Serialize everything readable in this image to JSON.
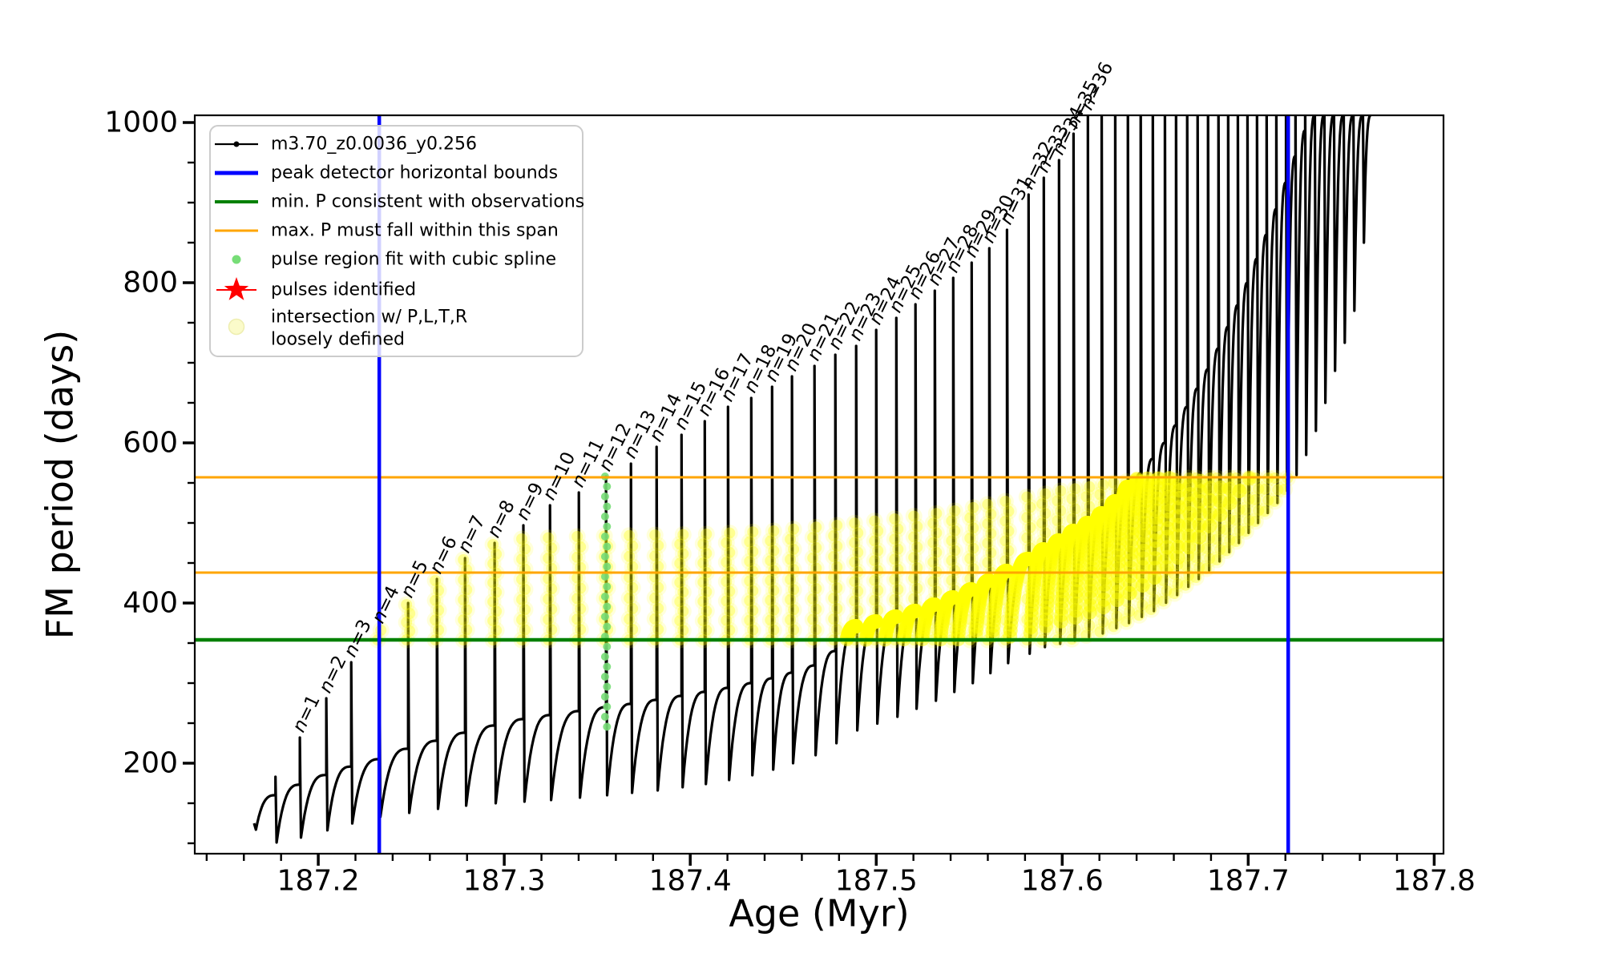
{
  "chart_data": {
    "type": "line",
    "title": "",
    "xlabel": "Age (Myr)",
    "ylabel": "FM period (days)",
    "xlim": [
      187.1336,
      187.805
    ],
    "ylim": [
      87,
      1009
    ],
    "x_major_ticks": [
      187.2,
      187.3,
      187.4,
      187.5,
      187.6,
      187.7,
      187.8
    ],
    "x_major_labels": [
      "187.2",
      "187.3",
      "187.4",
      "187.5",
      "187.6",
      "187.7",
      "187.8"
    ],
    "x_minor": {
      "start": 187.14,
      "step": 0.02,
      "end": 187.8
    },
    "y_major_ticks": [
      200,
      400,
      600,
      800,
      1000
    ],
    "y_major_labels": [
      "200",
      "400",
      "600",
      "800",
      "1000"
    ],
    "y_minor": {
      "start": 100,
      "step": 50,
      "end": 1000
    },
    "grid": false,
    "legend_position": "upper left",
    "series_label": "m3.70_z0.0036_y0.256",
    "colors": {
      "series": "#000000",
      "peak_bounds": "#0000ff",
      "min_p": "#008000",
      "max_p_span": "#ffa500",
      "spline_dots": "#77dd77",
      "pulses_star": "#ff0000",
      "intersection": "#ffff00"
    },
    "hlines": [
      {
        "name": "max. P span upper",
        "y": 557,
        "color": "#ffa500",
        "width": 3
      },
      {
        "name": "max. P span lower",
        "y": 438,
        "color": "#ffa500",
        "width": 3
      },
      {
        "name": "min. P consistent with observations",
        "y": 354,
        "color": "#008000",
        "width": 4.5
      }
    ],
    "vlines": [
      {
        "name": "peak detector left bound",
        "x": 187.2328,
        "color": "#0000ff",
        "width": 4.5
      },
      {
        "name": "peak detector right bound",
        "x": 187.7215,
        "color": "#0000ff",
        "width": 4.5
      }
    ],
    "curve_start": {
      "x": 187.1655,
      "y": 125,
      "hook_y": 117
    },
    "pre_pulse": {
      "x": 187.177,
      "peak": 183
    },
    "pulses": [
      {
        "n": 1,
        "x": 187.1901,
        "peak": 232
      },
      {
        "n": 2,
        "x": 187.2043,
        "peak": 281
      },
      {
        "n": 3,
        "x": 187.2177,
        "peak": 326
      },
      {
        "n": 4,
        "x": 187.2328,
        "peak": 368
      },
      {
        "n": 5,
        "x": 187.2483,
        "peak": 400
      },
      {
        "n": 6,
        "x": 187.2638,
        "peak": 430
      },
      {
        "n": 7,
        "x": 187.2789,
        "peak": 456
      },
      {
        "n": 8,
        "x": 187.2948,
        "peak": 475
      },
      {
        "n": 9,
        "x": 187.3103,
        "peak": 497
      },
      {
        "n": 10,
        "x": 187.3246,
        "peak": 522
      },
      {
        "n": 11,
        "x": 187.3401,
        "peak": 538
      },
      {
        "n": 12,
        "x": 187.3547,
        "peak": 558
      },
      {
        "n": 13,
        "x": 187.3681,
        "peak": 574
      },
      {
        "n": 14,
        "x": 187.3819,
        "peak": 595
      },
      {
        "n": 15,
        "x": 187.3953,
        "peak": 610
      },
      {
        "n": 16,
        "x": 187.4078,
        "peak": 627
      },
      {
        "n": 17,
        "x": 187.4203,
        "peak": 645
      },
      {
        "n": 18,
        "x": 187.4328,
        "peak": 656
      },
      {
        "n": 19,
        "x": 187.444,
        "peak": 670
      },
      {
        "n": 20,
        "x": 187.4547,
        "peak": 683
      },
      {
        "n": 21,
        "x": 187.4668,
        "peak": 696
      },
      {
        "n": 22,
        "x": 187.478,
        "peak": 710
      },
      {
        "n": 23,
        "x": 187.4892,
        "peak": 721
      },
      {
        "n": 24,
        "x": 187.5,
        "peak": 741
      },
      {
        "n": 25,
        "x": 187.5108,
        "peak": 756
      },
      {
        "n": 26,
        "x": 187.5211,
        "peak": 773
      },
      {
        "n": 27,
        "x": 187.5315,
        "peak": 790
      },
      {
        "n": 28,
        "x": 187.5414,
        "peak": 806
      },
      {
        "n": 29,
        "x": 187.5513,
        "peak": 825
      },
      {
        "n": 30,
        "x": 187.5608,
        "peak": 843
      },
      {
        "n": 31,
        "x": 187.5703,
        "peak": 866
      },
      {
        "n": 32,
        "x": 187.5819,
        "peak": 910
      },
      {
        "n": 33,
        "x": 187.5901,
        "peak": 931
      },
      {
        "n": 34,
        "x": 187.5983,
        "peak": 953
      },
      {
        "n": 35,
        "x": 187.6061,
        "peak": 986
      },
      {
        "n": 36,
        "x": 187.6138,
        "peak": 1009
      }
    ],
    "unlabeled_pulse_x": [
      187.6212,
      187.6285,
      187.6353,
      187.6422,
      187.6487,
      187.6552,
      187.6612,
      187.6672,
      187.6728,
      187.6784,
      187.684,
      187.6892,
      187.6944,
      187.6996,
      187.7047,
      187.7099,
      187.7151,
      187.7203,
      187.7254,
      187.7306,
      187.7358,
      187.7409,
      187.7461,
      187.7513,
      187.7565,
      187.7616
    ],
    "unlabeled_peak": 1040,
    "plateau_anchors": [
      [
        187.1655,
        125
      ],
      [
        187.177,
        160
      ],
      [
        187.19,
        173
      ],
      [
        187.204,
        185
      ],
      [
        187.218,
        196
      ],
      [
        187.2328,
        205
      ],
      [
        187.2483,
        218
      ],
      [
        187.2638,
        228
      ],
      [
        187.2789,
        238
      ],
      [
        187.2948,
        247
      ],
      [
        187.3103,
        255
      ],
      [
        187.3246,
        260
      ],
      [
        187.3401,
        265
      ],
      [
        187.3547,
        270
      ],
      [
        187.3681,
        274
      ],
      [
        187.3819,
        279
      ],
      [
        187.3953,
        284
      ],
      [
        187.4078,
        289
      ],
      [
        187.4203,
        294
      ],
      [
        187.4328,
        300
      ],
      [
        187.444,
        306
      ],
      [
        187.4547,
        313
      ],
      [
        187.4668,
        322
      ],
      [
        187.478,
        340
      ],
      [
        187.4892,
        371
      ],
      [
        187.5,
        377
      ],
      [
        187.5108,
        383
      ],
      [
        187.5211,
        390
      ],
      [
        187.5315,
        398
      ],
      [
        187.5414,
        407
      ],
      [
        187.5513,
        417
      ],
      [
        187.5608,
        428
      ],
      [
        187.5703,
        440
      ],
      [
        187.5819,
        455
      ],
      [
        187.5901,
        467
      ],
      [
        187.5983,
        478
      ],
      [
        187.6061,
        490
      ],
      [
        187.6138,
        500
      ],
      [
        187.6212,
        512
      ],
      [
        187.6285,
        527
      ],
      [
        187.6353,
        545
      ],
      [
        187.6422,
        562
      ],
      [
        187.6487,
        580
      ],
      [
        187.6552,
        600
      ],
      [
        187.6612,
        622
      ],
      [
        187.6672,
        645
      ],
      [
        187.6728,
        668
      ],
      [
        187.6784,
        692
      ],
      [
        187.684,
        718
      ],
      [
        187.6892,
        745
      ],
      [
        187.6944,
        772
      ],
      [
        187.6996,
        800
      ],
      [
        187.7047,
        830
      ],
      [
        187.7099,
        860
      ],
      [
        187.7151,
        892
      ],
      [
        187.7203,
        925
      ],
      [
        187.7254,
        958
      ],
      [
        187.7306,
        990
      ],
      [
        187.7358,
        1009
      ],
      [
        187.805,
        1009
      ]
    ],
    "dip_anchors": [
      [
        187.1655,
        117
      ],
      [
        187.177,
        101
      ],
      [
        187.19,
        107
      ],
      [
        187.204,
        116
      ],
      [
        187.218,
        125
      ],
      [
        187.2328,
        133
      ],
      [
        187.2483,
        138
      ],
      [
        187.2638,
        143
      ],
      [
        187.2789,
        147
      ],
      [
        187.2948,
        150
      ],
      [
        187.3103,
        152
      ],
      [
        187.3246,
        154
      ],
      [
        187.3401,
        157
      ],
      [
        187.3547,
        160
      ],
      [
        187.3681,
        163
      ],
      [
        187.3819,
        166
      ],
      [
        187.3953,
        170
      ],
      [
        187.4078,
        174
      ],
      [
        187.4203,
        179
      ],
      [
        187.4328,
        185
      ],
      [
        187.444,
        192
      ],
      [
        187.4547,
        200
      ],
      [
        187.4668,
        210
      ],
      [
        187.478,
        225
      ],
      [
        187.4892,
        241
      ],
      [
        187.5108,
        258
      ],
      [
        187.5315,
        278
      ],
      [
        187.5513,
        300
      ],
      [
        187.5703,
        325
      ],
      [
        187.5901,
        345
      ],
      [
        187.6061,
        353
      ],
      [
        187.6212,
        362
      ],
      [
        187.6353,
        375
      ],
      [
        187.6487,
        390
      ],
      [
        187.6612,
        410
      ],
      [
        187.6728,
        430
      ],
      [
        187.684,
        452
      ],
      [
        187.6944,
        475
      ],
      [
        187.7047,
        500
      ],
      [
        187.7151,
        525
      ],
      [
        187.7203,
        540
      ],
      [
        187.7254,
        560
      ],
      [
        187.7306,
        585
      ],
      [
        187.7358,
        615
      ],
      [
        187.7409,
        650
      ],
      [
        187.7461,
        690
      ],
      [
        187.7513,
        725
      ],
      [
        187.7565,
        765
      ],
      [
        187.7616,
        850
      ]
    ],
    "spline_fit_column": {
      "x": 187.3547,
      "y_top": 558,
      "y_bottom": 250,
      "dot_radius": 5,
      "dot_spacing": 12.5,
      "color": "#77dd77"
    },
    "yellow_region": {
      "x_start": 187.2328,
      "x_end": 187.7215,
      "band_bottom": 354,
      "band_top": 556,
      "chain_top_anchors": [
        [
          187.2328,
          368
        ],
        [
          187.2483,
          400
        ],
        [
          187.2638,
          430
        ],
        [
          187.2789,
          456
        ],
        [
          187.2948,
          475
        ],
        [
          187.3103,
          480
        ],
        [
          187.3401,
          483
        ],
        [
          187.4078,
          486
        ],
        [
          187.444,
          490
        ],
        [
          187.478,
          497
        ],
        [
          187.5108,
          505
        ],
        [
          187.5414,
          515
        ],
        [
          187.5703,
          527
        ],
        [
          187.5983,
          540
        ],
        [
          187.6285,
          550
        ],
        [
          187.6552,
          556
        ],
        [
          187.7215,
          556
        ]
      ],
      "dense_arc_start": 187.486
    },
    "legend": {
      "items": [
        {
          "label": "m3.70_z0.0036_y0.256",
          "marker": "line-dot",
          "color": "#000000"
        },
        {
          "label": "peak detector horizontal bounds",
          "marker": "thick-line",
          "color": "#0000ff"
        },
        {
          "label": "min. P consistent with observations",
          "marker": "thick-line",
          "color": "#008000"
        },
        {
          "label": "max. P must fall within this span",
          "marker": "line",
          "color": "#ffa500"
        },
        {
          "label": "pulse region fit with cubic spline",
          "marker": "dot",
          "color": "#77dd77"
        },
        {
          "label": "pulses identified",
          "marker": "star",
          "color": "#ff0000"
        },
        {
          "label": "intersection w/ P,L,T,R",
          "label2": "loosely defined",
          "marker": "big-dot",
          "color": "#fbfbca"
        }
      ]
    },
    "pulse_label_prefix": "n="
  }
}
